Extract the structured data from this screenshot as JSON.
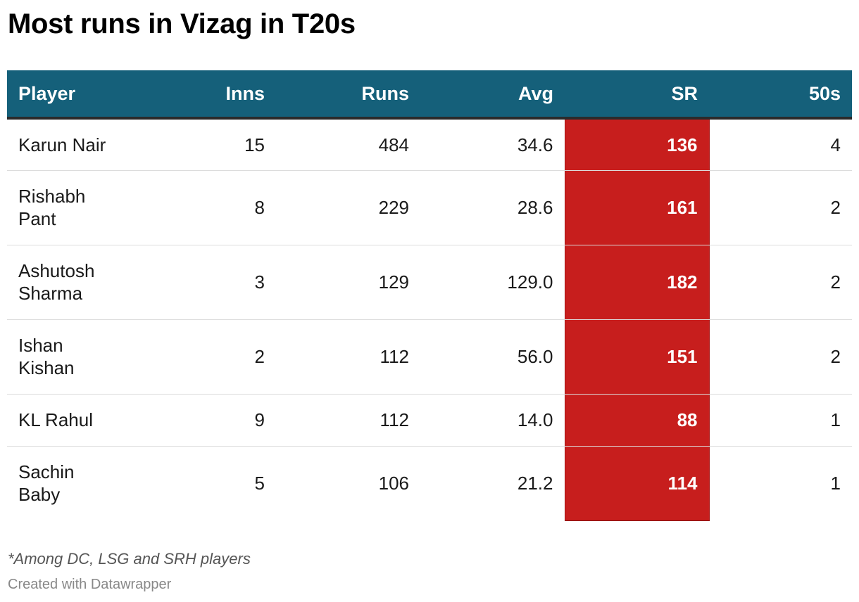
{
  "title": "Most runs in Vizag in T20s",
  "note": "*Among DC, LSG and SRH players",
  "credit": "Created with Datawrapper",
  "colors": {
    "header_bg": "#15607a",
    "highlight_column_bg": "#c71e1d",
    "header_text": "#ffffff"
  },
  "chart_data": {
    "type": "table",
    "columns": [
      "Player",
      "Inns",
      "Runs",
      "Avg",
      "SR",
      "50s"
    ],
    "highlighted_column": "SR",
    "rows": [
      {
        "player": [
          "Karun Nair"
        ],
        "inns": "15",
        "runs": "484",
        "avg": "34.6",
        "sr": "136",
        "fifties": "4"
      },
      {
        "player": [
          "Rishabh",
          "Pant"
        ],
        "inns": "8",
        "runs": "229",
        "avg": "28.6",
        "sr": "161",
        "fifties": "2"
      },
      {
        "player": [
          "Ashutosh",
          "Sharma"
        ],
        "inns": "3",
        "runs": "129",
        "avg": "129.0",
        "sr": "182",
        "fifties": "2"
      },
      {
        "player": [
          "Ishan",
          "Kishan"
        ],
        "inns": "2",
        "runs": "112",
        "avg": "56.0",
        "sr": "151",
        "fifties": "2"
      },
      {
        "player": [
          "KL Rahul"
        ],
        "inns": "9",
        "runs": "112",
        "avg": "14.0",
        "sr": "88",
        "fifties": "1"
      },
      {
        "player": [
          "Sachin",
          "Baby"
        ],
        "inns": "5",
        "runs": "106",
        "avg": "21.2",
        "sr": "114",
        "fifties": "1"
      }
    ]
  }
}
